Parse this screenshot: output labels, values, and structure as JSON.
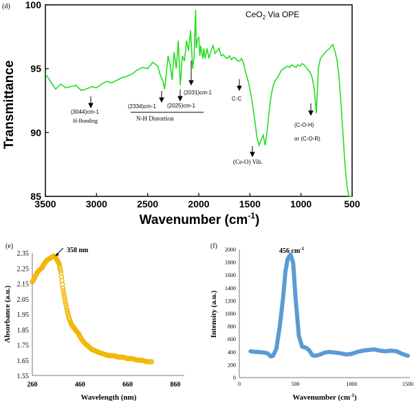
{
  "panels": {
    "d": {
      "label": "(d)",
      "title_main": "CeO",
      "title_sub": "2",
      "title_rest": " Via OPE",
      "ylabel": "Transmittance",
      "xlabel_main": "Wavenumber (cm",
      "xlabel_sup": "-1",
      "xlabel_end": ")",
      "annotations": {
        "a3044": "(3044)cm-1",
        "hbond": "H-Bonding",
        "a2334": "(2334)cm-1",
        "a2025": "(2025)cm-1",
        "a2031": "(2031)cm-1",
        "nh": "N-H Distortion",
        "cc": "C-C",
        "ceo": "(Ce-O) Vib.",
        "coh": "(C-O-H)",
        "cor": "or (C-O-R)"
      }
    },
    "e": {
      "label": "(e)",
      "peak_label": "358 nm",
      "ylabel": "Absorbance (a.u.)",
      "xlabel": "Wavelength (nm)"
    },
    "f": {
      "label": "(f)",
      "peak_main": "456 cm",
      "peak_sup": "-1",
      "ylabel": "Intensity (a.u.)",
      "xlabel_main": "Wavenumber (cm",
      "xlabel_sup": "-1",
      "xlabel_end": ")"
    }
  },
  "colors": {
    "ftir": "#22dd22",
    "uv": "#f2b705",
    "raman": "#5b9bd5"
  },
  "chart_data": [
    {
      "type": "line",
      "id": "d",
      "title": "CeO2 Via OPE",
      "xlabel": "Wavenumber (cm-1)",
      "ylabel": "Transmittance",
      "xlim": [
        3500,
        500
      ],
      "ylim": [
        85,
        100
      ],
      "x_ticks": [
        3500,
        3000,
        2500,
        2000,
        1500,
        1000,
        500
      ],
      "y_ticks": [
        85,
        90,
        95,
        100
      ],
      "x": [
        3500,
        3450,
        3400,
        3350,
        3300,
        3250,
        3200,
        3150,
        3100,
        3044,
        3000,
        2950,
        2900,
        2850,
        2800,
        2750,
        2700,
        2650,
        2600,
        2550,
        2500,
        2450,
        2400,
        2380,
        2350,
        2334,
        2320,
        2300,
        2280,
        2260,
        2240,
        2220,
        2200,
        2180,
        2160,
        2140,
        2120,
        2100,
        2080,
        2060,
        2045,
        2031,
        2025,
        2015,
        2000,
        1990,
        1980,
        1970,
        1960,
        1950,
        1940,
        1930,
        1920,
        1900,
        1880,
        1860,
        1840,
        1820,
        1800,
        1780,
        1760,
        1740,
        1720,
        1700,
        1680,
        1660,
        1640,
        1620,
        1600,
        1580,
        1560,
        1545,
        1530,
        1510,
        1490,
        1470,
        1450,
        1430,
        1410,
        1390,
        1370,
        1350,
        1330,
        1310,
        1290,
        1270,
        1250,
        1230,
        1210,
        1190,
        1170,
        1150,
        1130,
        1110,
        1090,
        1070,
        1050,
        1030,
        1010,
        990,
        970,
        950,
        930,
        910,
        890,
        870,
        850,
        830,
        810,
        790,
        770,
        750,
        730,
        710,
        690,
        670,
        650,
        630,
        610,
        590,
        570,
        550,
        530,
        510,
        500
      ],
      "y": [
        94.6,
        94.0,
        93.4,
        93.8,
        93.5,
        93.6,
        93.7,
        93.3,
        93.4,
        93.6,
        93.5,
        93.8,
        94.0,
        93.9,
        94.1,
        94.3,
        94.4,
        94.6,
        94.9,
        95.1,
        95.0,
        95.5,
        95.2,
        94.6,
        94.0,
        93.4,
        94.4,
        96.0,
        95.3,
        94.1,
        96.3,
        95.0,
        97.2,
        93.7,
        96.0,
        95.6,
        97.2,
        96.4,
        98.0,
        95.0,
        96.0,
        99.6,
        96.6,
        97.2,
        97.5,
        96.0,
        96.8,
        96.2,
        95.8,
        96.6,
        95.8,
        96.1,
        96.6,
        95.8,
        96.4,
        96.8,
        96.2,
        96.4,
        96.6,
        96.0,
        96.1,
        95.9,
        95.8,
        96.0,
        95.7,
        95.9,
        95.8,
        95.6,
        95.6,
        95.8,
        95.4,
        94.8,
        94.4,
        93.8,
        93.0,
        92.0,
        90.8,
        89.6,
        89.0,
        89.4,
        89.8,
        89.0,
        90.2,
        91.8,
        93.0,
        93.7,
        94.1,
        94.3,
        94.6,
        94.9,
        95.0,
        95.1,
        95.2,
        95.1,
        95.3,
        95.2,
        95.1,
        95.3,
        95.2,
        95.4,
        95.3,
        95.1,
        94.9,
        94.7,
        94.3,
        93.4,
        91.5,
        95.0,
        95.8,
        96.0,
        96.2,
        96.4,
        96.5,
        96.7,
        96.9,
        96.4,
        95.8,
        94.5,
        92.5,
        90.0,
        87.5,
        85.8,
        84.9,
        84.6,
        84.5
      ]
    },
    {
      "type": "scatter",
      "id": "e",
      "xlabel": "Wavelength (nm)",
      "ylabel": "Absorbance (a.u.)",
      "xlim": [
        260,
        860
      ],
      "ylim": [
        1.55,
        2.35
      ],
      "x_ticks": [
        260,
        460,
        660,
        860
      ],
      "y_ticks": [
        1.55,
        1.65,
        1.75,
        1.85,
        1.95,
        2.05,
        2.15,
        2.25,
        2.35
      ],
      "annotation": "358 nm",
      "x": [
        260,
        270,
        280,
        290,
        300,
        310,
        320,
        330,
        340,
        350,
        358,
        365,
        372,
        380,
        388,
        396,
        405,
        415,
        425,
        435,
        445,
        455,
        465,
        480,
        495,
        510,
        525,
        540,
        560,
        580,
        600,
        620,
        640,
        660,
        680,
        700,
        720,
        740,
        760
      ],
      "y": [
        2.16,
        2.19,
        2.22,
        2.24,
        2.25,
        2.28,
        2.3,
        2.31,
        2.32,
        2.33,
        2.32,
        2.3,
        2.28,
        2.22,
        2.12,
        2.05,
        1.98,
        1.92,
        1.88,
        1.86,
        1.84,
        1.82,
        1.79,
        1.76,
        1.74,
        1.72,
        1.71,
        1.7,
        1.69,
        1.68,
        1.68,
        1.67,
        1.67,
        1.66,
        1.66,
        1.65,
        1.65,
        1.64,
        1.64
      ]
    },
    {
      "type": "line",
      "id": "f",
      "xlabel": "Wavenumber (cm-1)",
      "ylabel": "Intensity (a.u.)",
      "xlim": [
        0,
        1500
      ],
      "ylim": [
        0,
        2000
      ],
      "x_ticks": [
        0,
        500,
        1000,
        1500
      ],
      "y_ticks": [
        0,
        200,
        400,
        600,
        800,
        1000,
        1200,
        1400,
        1600,
        1800,
        2000
      ],
      "annotation": "456 cm-1",
      "x": [
        100,
        150,
        200,
        250,
        280,
        300,
        330,
        360,
        390,
        410,
        430,
        456,
        480,
        500,
        530,
        560,
        590,
        620,
        650,
        680,
        720,
        760,
        800,
        850,
        900,
        950,
        1000,
        1050,
        1100,
        1150,
        1200,
        1250,
        1300,
        1350,
        1400,
        1450,
        1500
      ],
      "y": [
        410,
        400,
        395,
        380,
        330,
        340,
        450,
        800,
        1250,
        1650,
        1850,
        1920,
        1780,
        1250,
        650,
        480,
        470,
        430,
        350,
        340,
        360,
        390,
        400,
        390,
        380,
        360,
        370,
        400,
        420,
        430,
        440,
        420,
        410,
        420,
        410,
        370,
        340
      ]
    }
  ]
}
